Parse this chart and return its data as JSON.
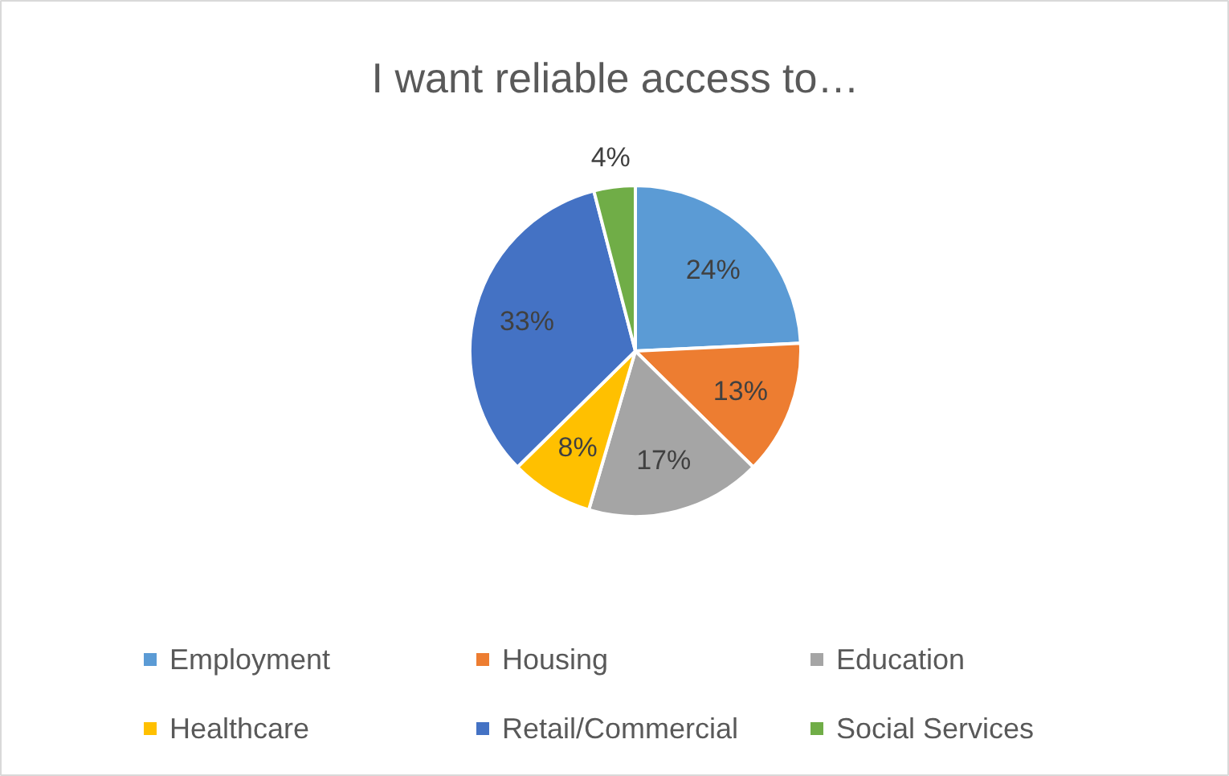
{
  "chart_data": {
    "type": "pie",
    "title": "I want reliable access to…",
    "categories": [
      "Employment",
      "Housing",
      "Education",
      "Healthcare",
      "Retail/Commercial",
      "Social Services"
    ],
    "values": [
      24,
      13,
      17,
      8,
      33,
      4
    ],
    "colors": [
      "#5b9bd5",
      "#ed7d31",
      "#a5a5a5",
      "#ffc000",
      "#4472c4",
      "#70ad47"
    ],
    "value_labels": [
      "24%",
      "13%",
      "17%",
      "8%",
      "33%",
      "4%"
    ],
    "legend": "bottom"
  }
}
